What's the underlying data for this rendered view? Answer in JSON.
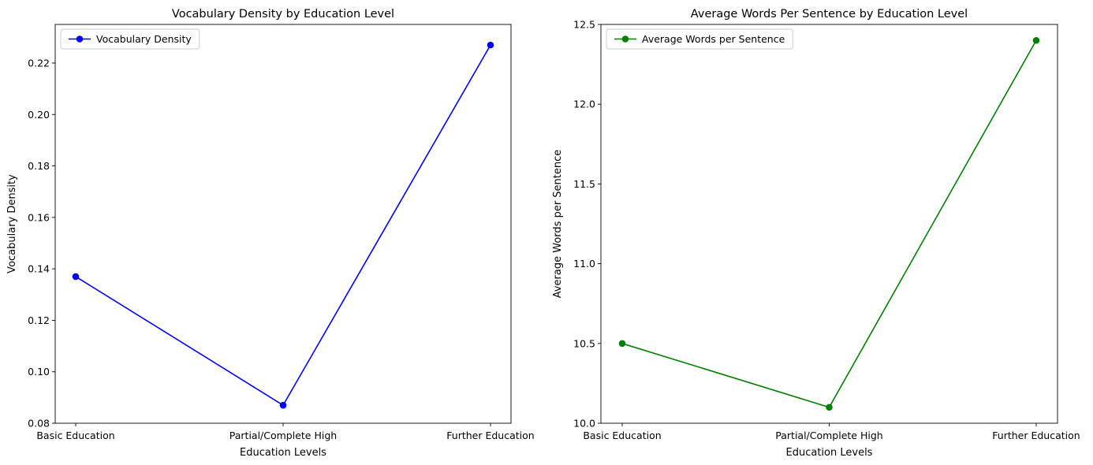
{
  "chart_data": [
    {
      "type": "line",
      "title": "Vocabulary Density by Education Level",
      "xlabel": "Education Levels",
      "ylabel": "Vocabulary Density",
      "categories": [
        "Basic Education",
        "Partial/Complete High",
        "Further Education"
      ],
      "series": [
        {
          "name": "Vocabulary Density",
          "values": [
            0.137,
            0.087,
            0.227
          ],
          "color": "#0000ff",
          "marker": "circle"
        }
      ],
      "ylim": [
        0.08,
        0.235
      ],
      "yticks": [
        0.08,
        0.1,
        0.12,
        0.14,
        0.16,
        0.18,
        0.2,
        0.22
      ],
      "ytick_labels": [
        "0.08",
        "0.10",
        "0.12",
        "0.14",
        "0.16",
        "0.18",
        "0.20",
        "0.22"
      ],
      "grid": false,
      "legend_position": "top-left"
    },
    {
      "type": "line",
      "title": "Average Words Per Sentence by Education Level",
      "xlabel": "Education Levels",
      "ylabel": "Average Words per Sentence",
      "categories": [
        "Basic Education",
        "Partial/Complete High",
        "Further Education"
      ],
      "series": [
        {
          "name": "Average Words per Sentence",
          "values": [
            10.5,
            10.1,
            12.4
          ],
          "color": "#008000",
          "marker": "circle"
        }
      ],
      "ylim": [
        10.0,
        12.5
      ],
      "yticks": [
        10.0,
        10.5,
        11.0,
        11.5,
        12.0,
        12.5
      ],
      "ytick_labels": [
        "10.0",
        "10.5",
        "11.0",
        "11.5",
        "12.0",
        "12.5"
      ],
      "grid": false,
      "legend_position": "top-left"
    }
  ]
}
